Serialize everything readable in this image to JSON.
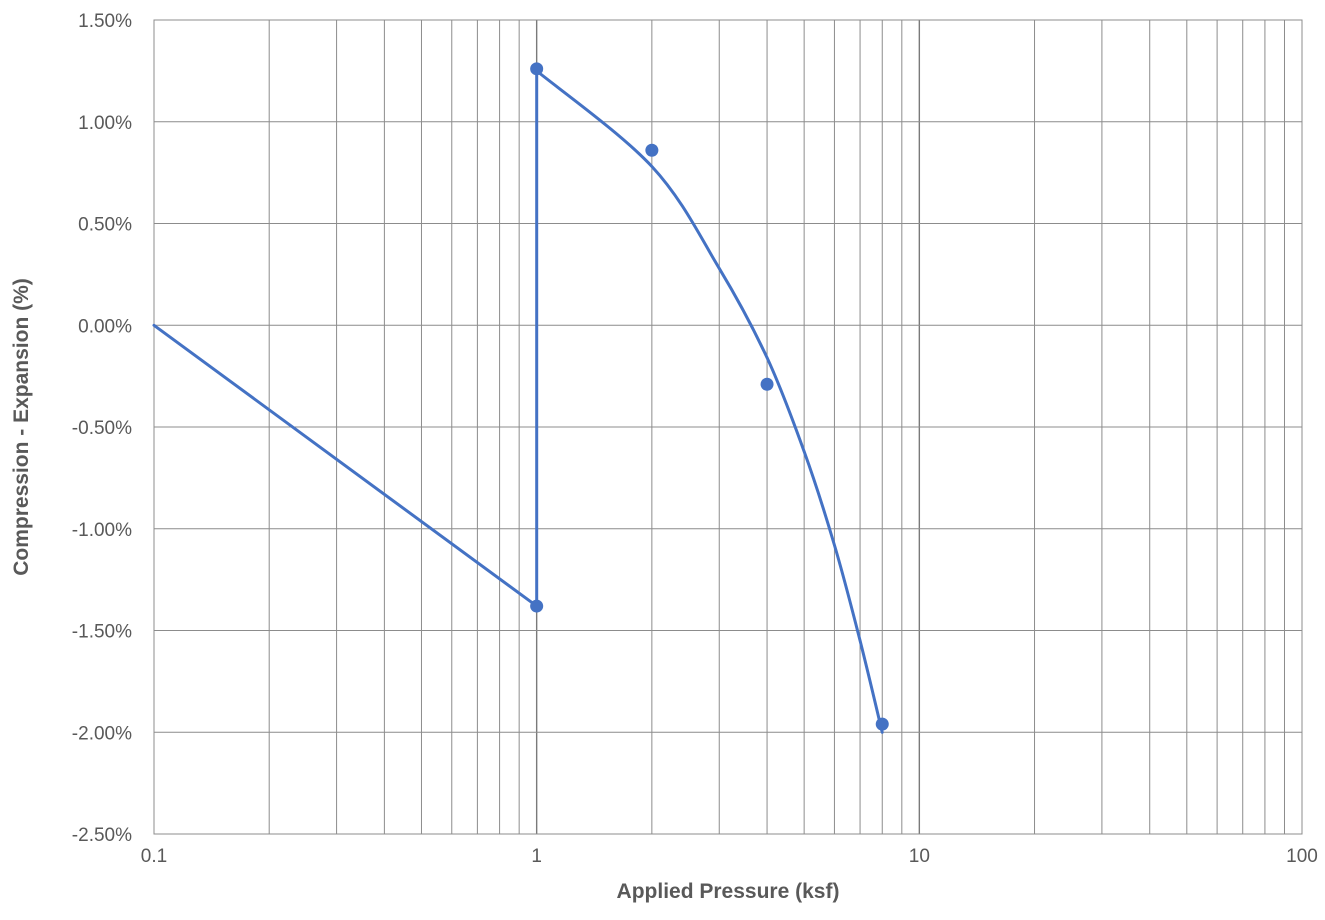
{
  "chart_data": {
    "type": "scatter",
    "x_scale": "log",
    "xlim": [
      0.1,
      100
    ],
    "ylim": [
      -0.025,
      0.015
    ],
    "xlabel": "Applied Pressure (ksf)",
    "ylabel": "Compression - Expansion (%)",
    "x_ticks": [
      "0.1",
      "1",
      "10",
      "100"
    ],
    "y_ticks": [
      "1.50%",
      "1.00%",
      "0.50%",
      "0.00%",
      "-0.50%",
      "-1.00%",
      "-1.50%",
      "-2.00%",
      "-2.50%"
    ],
    "grid": true,
    "series": [
      {
        "line": "straight",
        "markers": false,
        "points": [
          {
            "x": 0.1,
            "y": 0.0
          },
          {
            "x": 1,
            "y": -0.0138
          },
          {
            "x": 1,
            "y": 0.0126
          }
        ]
      },
      {
        "line": "none",
        "markers": true,
        "points": [
          {
            "x": 1,
            "y": 0.0126
          },
          {
            "x": 1,
            "y": -0.0138
          },
          {
            "x": 2,
            "y": 0.0086
          },
          {
            "x": 4,
            "y": -0.0029
          },
          {
            "x": 8,
            "y": -0.0196
          }
        ]
      },
      {
        "line": "smooth-trend",
        "markers": false,
        "points": [
          {
            "x": 1,
            "y": 0.0125
          },
          {
            "x": 2,
            "y": 0.0078
          },
          {
            "x": 3,
            "y": 0.0028
          },
          {
            "x": 4,
            "y": -0.0016
          },
          {
            "x": 5,
            "y": -0.0062
          },
          {
            "x": 6,
            "y": -0.0108
          },
          {
            "x": 7,
            "y": -0.0155
          },
          {
            "x": 8,
            "y": -0.02
          }
        ]
      }
    ],
    "colors": {
      "series": "#4472c4",
      "grid": "#8c8c8c",
      "text": "#595959"
    }
  }
}
